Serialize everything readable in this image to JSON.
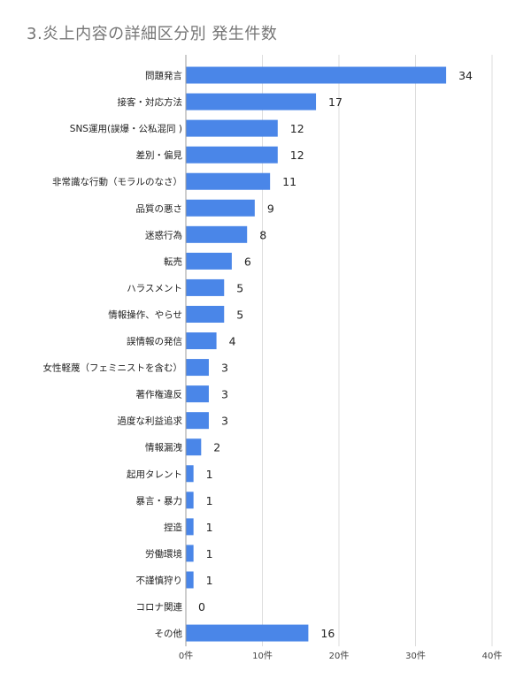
{
  "chart_data": {
    "type": "bar",
    "orientation": "horizontal",
    "title": "3.炎上内容の詳細区分別 発生件数",
    "categories": [
      "問題発言",
      "接客・対応方法",
      "SNS運用(誤爆・公私混同 )",
      "差別・偏見",
      "非常識な行動（モラルのなさ）",
      "品質の悪さ",
      "迷惑行為",
      "転売",
      "ハラスメント",
      "情報操作、やらせ",
      "誤情報の発信",
      "女性軽蔑（フェミニストを含む）",
      "著作権違反",
      "過度な利益追求",
      "情報漏洩",
      "起用タレント",
      "暴言・暴力",
      "捏造",
      "労働環境",
      "不謹慎狩り",
      "コロナ関連",
      "その他"
    ],
    "values": [
      34,
      17,
      12,
      12,
      11,
      9,
      8,
      6,
      5,
      5,
      4,
      3,
      3,
      3,
      2,
      1,
      1,
      1,
      1,
      1,
      0,
      16
    ],
    "xlim": [
      0,
      40
    ],
    "xticks": [
      0,
      10,
      20,
      30,
      40
    ],
    "xtick_labels": [
      "0件",
      "10件",
      "20件",
      "30件",
      "40件"
    ],
    "grid": "vertical",
    "bar_color": "#4a86e8",
    "data_labels": true
  }
}
